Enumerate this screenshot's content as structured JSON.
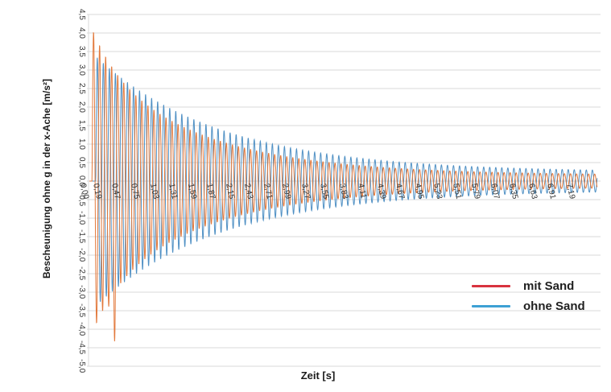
{
  "chart_data": {
    "type": "line",
    "title": "",
    "xlabel": "Zeit [s]",
    "ylabel": "Bescheunigung ohne g in der x-Ache [m/s²]",
    "xlim": [
      0,
      7.51
    ],
    "ylim": [
      -5.0,
      4.5
    ],
    "grid": "horizontal",
    "grid_color": "#d9d9d9",
    "y_ticks": [
      {
        "label": "4,5",
        "value": 4.5
      },
      {
        "label": "4,0",
        "value": 4.0
      },
      {
        "label": "3,5",
        "value": 3.5
      },
      {
        "label": "3,0",
        "value": 3.0
      },
      {
        "label": "2,5",
        "value": 2.5
      },
      {
        "label": "2,0",
        "value": 2.0
      },
      {
        "label": "1,5",
        "value": 1.5
      },
      {
        "label": "1,0",
        "value": 1.0
      },
      {
        "label": "0,5",
        "value": 0.5
      },
      {
        "label": "0,0",
        "value": 0.0
      },
      {
        "label": "-0,5",
        "value": -0.5
      },
      {
        "label": "-1,0",
        "value": -1.0
      },
      {
        "label": "-1,5",
        "value": -1.5
      },
      {
        "label": "-2,0",
        "value": -2.0
      },
      {
        "label": "-2,5",
        "value": -2.5
      },
      {
        "label": "-3,0",
        "value": -3.0
      },
      {
        "label": "-3,5",
        "value": -3.5
      },
      {
        "label": "-4,0",
        "value": -4.0
      },
      {
        "label": "-4,5",
        "value": -4.5
      },
      {
        "label": "-5,0",
        "value": -5.0
      }
    ],
    "x_ticks": [
      {
        "label": "0,00",
        "value": 0.0
      },
      {
        "label": "0,19",
        "value": 0.19
      },
      {
        "label": "0,47",
        "value": 0.47
      },
      {
        "label": "0,75",
        "value": 0.75
      },
      {
        "label": "1,03",
        "value": 1.03
      },
      {
        "label": "1,31",
        "value": 1.31
      },
      {
        "label": "1,59",
        "value": 1.59
      },
      {
        "label": "1,87",
        "value": 1.87
      },
      {
        "label": "2,15",
        "value": 2.15
      },
      {
        "label": "2,43",
        "value": 2.43
      },
      {
        "label": "2,71",
        "value": 2.71
      },
      {
        "label": "2,99",
        "value": 2.99
      },
      {
        "label": "3,27",
        "value": 3.27
      },
      {
        "label": "3,55",
        "value": 3.55
      },
      {
        "label": "3,83",
        "value": 3.83
      },
      {
        "label": "4,11",
        "value": 4.11
      },
      {
        "label": "4,39",
        "value": 4.39
      },
      {
        "label": "4,67",
        "value": 4.67
      },
      {
        "label": "4,95",
        "value": 4.95
      },
      {
        "label": "5,23",
        "value": 5.23
      },
      {
        "label": "5,51",
        "value": 5.51
      },
      {
        "label": "5,79",
        "value": 5.79
      },
      {
        "label": "6,07",
        "value": 6.07
      },
      {
        "label": "6,35",
        "value": 6.35
      },
      {
        "label": "6,63",
        "value": 6.63
      },
      {
        "label": "6,91",
        "value": 6.91
      },
      {
        "label": "7,19",
        "value": 7.19
      }
    ],
    "legend": {
      "position": "inside-right-lower",
      "entries": [
        {
          "label": "mit Sand",
          "color": "#d8333f"
        },
        {
          "label": "ohne Sand",
          "color": "#3da0d4"
        }
      ]
    },
    "series": [
      {
        "name": "ohne Sand",
        "plot_color": "#4f90c4",
        "model": {
          "kind": "damped_sine",
          "freq_hz": 11.2,
          "t_start": 0.095,
          "t_end": 7.51,
          "amp_base": 0.24,
          "amp_terms": [
            [
              3.3,
              1.85
            ]
          ]
        }
      },
      {
        "name": "mit Sand",
        "plot_color": "#e2793c",
        "model": {
          "kind": "damped_sine",
          "freq_hz": 11.2,
          "t_start": 0.04,
          "t_end": 7.51,
          "amp_base": 0.16,
          "amp_terms": [
            [
              2.95,
              1.65
            ],
            [
              1.2,
              0.4
            ]
          ],
          "spike": {
            "t0": 0.27,
            "t1": 0.43,
            "extra": 1.7,
            "sign": -1
          }
        }
      }
    ]
  }
}
